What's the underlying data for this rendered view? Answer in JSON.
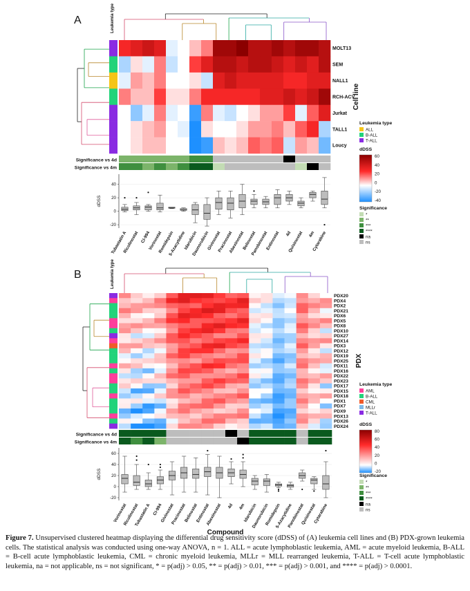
{
  "panelA": {
    "label": "A",
    "leukemia_type_header": "Leukemia type",
    "cell_lines": [
      "MOLT13",
      "SEM",
      "NALL1",
      "RCH-ACV",
      "Jurkat",
      "TALL1",
      "Loucy"
    ],
    "cell_line_types": [
      "T-ALL",
      "B-ALL",
      "ALL",
      "B-ALL",
      "T-ALL",
      "T-ALL",
      "T-ALL"
    ],
    "axis_title": "Cell line",
    "compounds": [
      "Tubastatin A",
      "Ricolinostat",
      "CI-994",
      "Vorinostat",
      "Romidepsin",
      "5-Azacytidine",
      "Idarubicin",
      "Daunorubicin",
      "Givinostat",
      "Pracinostat",
      "Abexinostat",
      "Belinostat",
      "Panobinostat",
      "Entinostat",
      "4d",
      "Quisinostat",
      "4m",
      "Cytarabine"
    ],
    "significance_rows": [
      "Significance vs 4d",
      "Significance vs 4m"
    ],
    "significance_4d": [
      "**",
      "**",
      "**",
      "**",
      "**",
      "**",
      "***",
      "***",
      "ns",
      "ns",
      "ns",
      "ns",
      "ns",
      "ns",
      "na",
      "ns",
      "ns",
      "ns"
    ],
    "significance_4m": [
      "***",
      "***",
      "**",
      "***",
      "**",
      "***",
      "****",
      "****",
      "*",
      "ns",
      "ns",
      "ns",
      "ns",
      "ns",
      "ns",
      "*",
      "na",
      "ns"
    ],
    "heat_values": [
      [
        35,
        40,
        45,
        40,
        -5,
        0,
        10,
        20,
        55,
        55,
        60,
        50,
        50,
        55,
        50,
        55,
        55,
        50
      ],
      [
        -15,
        5,
        -5,
        20,
        -10,
        0,
        30,
        40,
        50,
        50,
        45,
        50,
        50,
        45,
        40,
        45,
        40,
        50
      ],
      [
        -5,
        15,
        10,
        20,
        0,
        0,
        5,
        -10,
        40,
        45,
        40,
        40,
        40,
        40,
        35,
        35,
        40,
        40
      ],
      [
        20,
        10,
        10,
        30,
        5,
        5,
        20,
        35,
        35,
        35,
        35,
        35,
        40,
        40,
        45,
        40,
        45,
        55
      ],
      [
        0,
        -20,
        -5,
        20,
        -5,
        0,
        -35,
        20,
        -5,
        -10,
        0,
        5,
        15,
        15,
        30,
        -5,
        25,
        40
      ],
      [
        0,
        5,
        10,
        15,
        0,
        -5,
        -40,
        5,
        0,
        0,
        5,
        15,
        15,
        20,
        10,
        25,
        35,
        -15
      ],
      [
        0,
        5,
        10,
        10,
        0,
        0,
        -40,
        -35,
        10,
        5,
        10,
        25,
        20,
        25,
        -10,
        15,
        10,
        -25
      ]
    ],
    "legend": {
      "leukemia_title": "Leukemia type",
      "types": [
        {
          "label": "ALL",
          "color": "#f5c518"
        },
        {
          "label": "B-ALL",
          "color": "#22d37a"
        },
        {
          "label": "T-ALL",
          "color": "#8a2be2"
        }
      ],
      "ddss_title": "dDSS",
      "ddss_ticks": [
        "60",
        "40",
        "20",
        "0",
        "-20",
        "-40"
      ],
      "significance_title": "Significance",
      "significance_levels": [
        "*",
        "**",
        "***",
        "****",
        "na",
        "ns"
      ]
    },
    "box_ylabel": "dDSS",
    "box_ticks": [
      "40",
      "20",
      "0",
      "-20"
    ],
    "box_stats": [
      {
        "min": -1,
        "q1": 1,
        "med": 3,
        "q3": 6,
        "max": 10,
        "outliers": [
          20
        ]
      },
      {
        "min": -5,
        "q1": 2,
        "med": 5,
        "q3": 8,
        "max": 13,
        "outliers": [
          20
        ]
      },
      {
        "min": 0,
        "q1": 2,
        "med": 6,
        "q3": 8,
        "max": 10,
        "outliers": [
          28
        ]
      },
      {
        "min": -1,
        "q1": 2,
        "med": 5,
        "q3": 12,
        "max": 24,
        "outliers": []
      },
      {
        "min": 4,
        "q1": 4.5,
        "med": 5,
        "q3": 6,
        "max": 6,
        "outliers": []
      },
      {
        "min": 0,
        "q1": 1.5,
        "med": 2,
        "q3": 4,
        "max": 5,
        "outliers": []
      },
      {
        "min": -17,
        "q1": -5,
        "med": 2,
        "q3": 10,
        "max": 13,
        "outliers": []
      },
      {
        "min": -22,
        "q1": -12,
        "med": -3,
        "q3": 10,
        "max": 20,
        "outliers": []
      },
      {
        "min": -5,
        "q1": 3,
        "med": 13,
        "q3": 20,
        "max": 30,
        "outliers": []
      },
      {
        "min": -10,
        "q1": 2,
        "med": 12,
        "q3": 20,
        "max": 30,
        "outliers": []
      },
      {
        "min": -5,
        "q1": 5,
        "med": 15,
        "q3": 25,
        "max": 40,
        "outliers": []
      },
      {
        "min": 5,
        "q1": 10,
        "med": 15,
        "q3": 18,
        "max": 25,
        "outliers": [
          30
        ]
      },
      {
        "min": 5,
        "q1": 10,
        "med": 14,
        "q3": 18,
        "max": 22,
        "outliers": []
      },
      {
        "min": 5,
        "q1": 10,
        "med": 20,
        "q3": 25,
        "max": 32,
        "outliers": []
      },
      {
        "min": 10,
        "q1": 15,
        "med": 20,
        "q3": 25,
        "max": 30,
        "outliers": []
      },
      {
        "min": 5,
        "q1": 8,
        "med": 12,
        "q3": 15,
        "max": 20,
        "outliers": []
      },
      {
        "min": 15,
        "q1": 20,
        "med": 25,
        "q3": 28,
        "max": 30,
        "outliers": []
      },
      {
        "min": 5,
        "q1": 10,
        "med": 18,
        "q3": 30,
        "max": 50,
        "outliers": [
          -20
        ]
      }
    ]
  },
  "panelB": {
    "label": "B",
    "leukemia_type_header": "Leukemia type",
    "pdx": [
      "PDX20",
      "PDX4",
      "PDX2",
      "PDX21",
      "PDX6",
      "PDX5",
      "PDX8",
      "PDX10",
      "PDX27",
      "PDX14",
      "PDX3",
      "PDX12",
      "PDX19",
      "PDX25",
      "PDX11",
      "PDX16",
      "PDX22",
      "PDX23",
      "PDX17",
      "PDX15",
      "PDX18",
      "PDX1",
      "PDX7",
      "PDX9",
      "PDX13",
      "PDX26",
      "PDX24"
    ],
    "pdx_types": [
      "T-ALL",
      "AML",
      "B-ALL",
      "B-ALL",
      "B-ALL",
      "AML",
      "AML",
      "B-ALL",
      "T-ALL",
      "AML",
      "CML",
      "B-ALL",
      "B-ALL",
      "B-ALL",
      "AML",
      "B-ALL",
      "AML",
      "AML",
      "B-ALL",
      "B-ALL",
      "AML",
      "B-ALL",
      "B-ALL",
      "B-ALL",
      "AML",
      "B-ALL",
      "T-ALL"
    ],
    "axis_title": "PDX",
    "compounds": [
      "Vorinostat",
      "Ricolinostat",
      "Tubastatin A",
      "CI-994",
      "Givinostat",
      "Pracinostat",
      "Belinostat",
      "Entinostat",
      "Abexinostat",
      "4d",
      "4m",
      "Idarubicin",
      "Daunorubicin",
      "Romidepsin",
      "5-Azacytidine",
      "Panobinostat",
      "Quisinostat",
      "Cytarabine"
    ],
    "significance_rows": [
      "Significance vs 4d",
      "Significance vs 4m"
    ],
    "significance_4d": [
      "****",
      "****",
      "****",
      "****",
      "ns",
      "ns",
      "ns",
      "ns",
      "ns",
      "na",
      "ns",
      "****",
      "****",
      "****",
      "****",
      "ns",
      "****",
      "****"
    ],
    "significance_4m": [
      "****",
      "***",
      "****",
      "**",
      "ns",
      "ns",
      "ns",
      "ns",
      "ns",
      "ns",
      "na",
      "****",
      "****",
      "****",
      "****",
      "ns",
      "****",
      "****"
    ],
    "x_title": "Compound",
    "legend": {
      "leukemia_title": "Leukemia type",
      "types": [
        {
          "label": "AML",
          "color": "#ff3e9b"
        },
        {
          "label": "B-ALL",
          "color": "#22d37a"
        },
        {
          "label": "CML",
          "color": "#f05a2a"
        },
        {
          "label": "MLLr",
          "color": "#7fb9e8"
        },
        {
          "label": "T-ALL",
          "color": "#8a2be2"
        }
      ],
      "ddss_title": "dDSS",
      "ddss_ticks": [
        "80",
        "60",
        "40",
        "20",
        "0",
        "-20"
      ],
      "significance_title": "Significance",
      "significance_levels": [
        "*",
        "**",
        "***",
        "****",
        "na",
        "ns"
      ]
    },
    "box_ylabel": "dDSS",
    "box_ticks": [
      "60",
      "40",
      "20",
      "0",
      "-20"
    ],
    "box_stats": [
      {
        "min": -10,
        "q1": 5,
        "med": 15,
        "q3": 22,
        "max": 55,
        "outliers": []
      },
      {
        "min": -5,
        "q1": 2,
        "med": 8,
        "q3": 20,
        "max": 40,
        "outliers": [
          55,
          48
        ]
      },
      {
        "min": -5,
        "q1": 0,
        "med": 5,
        "q3": 12,
        "max": 25,
        "outliers": [
          40
        ]
      },
      {
        "min": -5,
        "q1": 5,
        "med": 12,
        "q3": 18,
        "max": 30,
        "outliers": [
          35,
          40
        ]
      },
      {
        "min": -15,
        "q1": 12,
        "med": 20,
        "q3": 28,
        "max": 45,
        "outliers": []
      },
      {
        "min": -10,
        "q1": 15,
        "med": 25,
        "q3": 35,
        "max": 55,
        "outliers": []
      },
      {
        "min": -10,
        "q1": 15,
        "med": 22,
        "q3": 32,
        "max": 52,
        "outliers": []
      },
      {
        "min": -15,
        "q1": 18,
        "med": 27,
        "q3": 35,
        "max": 58,
        "outliers": [
          65
        ]
      },
      {
        "min": -20,
        "q1": 15,
        "med": 25,
        "q3": 35,
        "max": 55,
        "outliers": []
      },
      {
        "min": 5,
        "q1": 18,
        "med": 25,
        "q3": 32,
        "max": 45,
        "outliers": [
          50
        ]
      },
      {
        "min": 0,
        "q1": 15,
        "med": 22,
        "q3": 30,
        "max": 45,
        "outliers": [
          52,
          58
        ]
      },
      {
        "min": -5,
        "q1": 3,
        "med": 10,
        "q3": 15,
        "max": 20,
        "outliers": []
      },
      {
        "min": -10,
        "q1": 2,
        "med": 10,
        "q3": 14,
        "max": 22,
        "outliers": []
      },
      {
        "min": -2,
        "q1": 1,
        "med": 3,
        "q3": 5,
        "max": 8,
        "outliers": [
          -5,
          -8
        ]
      },
      {
        "min": -5,
        "q1": -1,
        "med": 2,
        "q3": 4,
        "max": 8,
        "outliers": []
      },
      {
        "min": 10,
        "q1": 15,
        "med": 20,
        "q3": 25,
        "max": 30,
        "outliers": [
          -5
        ]
      },
      {
        "min": -5,
        "q1": 5,
        "med": 12,
        "q3": 15,
        "max": 18,
        "outliers": [
          -8
        ]
      },
      {
        "min": -20,
        "q1": -5,
        "med": 5,
        "q3": 20,
        "max": 45,
        "outliers": [
          65
        ]
      }
    ]
  },
  "colors": {
    "heat_hi": "#8b0000",
    "heat_pos": "#ff2a2a",
    "heat_zero": "#ffffff",
    "heat_neg": "#1e90ff",
    "sig_*": "#c3dcb4",
    "sig_**": "#7cb46a",
    "sig_***": "#3f8f3f",
    "sig_****": "#0a5a1e",
    "sig_na": "#000000",
    "sig_ns": "#bdbdbd",
    "box_fill": "#bdbdbd",
    "dendro": [
      "#d44b6c",
      "#1aa34a",
      "#b8862a",
      "#2aa9a0",
      "#8a54c8",
      "#e05a9a"
    ]
  },
  "caption": {
    "figure_label": "Figure 7.",
    "text": "Unsupervised clustered heatmap displaying the differential drug sensitivity score (dDSS) of (A) leukemia cell lines and (B) PDX-grown leukemia cells. The statistical analysis was conducted using one-way ANOVA, n = 1. ALL = acute lymphoblastic leukemia, AML = acute myeloid leukemia, B-ALL = B-cell acute lymphoblastic leukemia, CML = chronic myeloid leukemia, MLLr = MLL rearranged leukemia, T-ALL = T-cell acute lymphoblastic leukemia, na = not applicable, ns = not significant, * = p(adj) > 0.05, ** = p(adj) > 0.01, *** = p(adj) > 0.001, and **** = p(adj) > 0.0001."
  }
}
